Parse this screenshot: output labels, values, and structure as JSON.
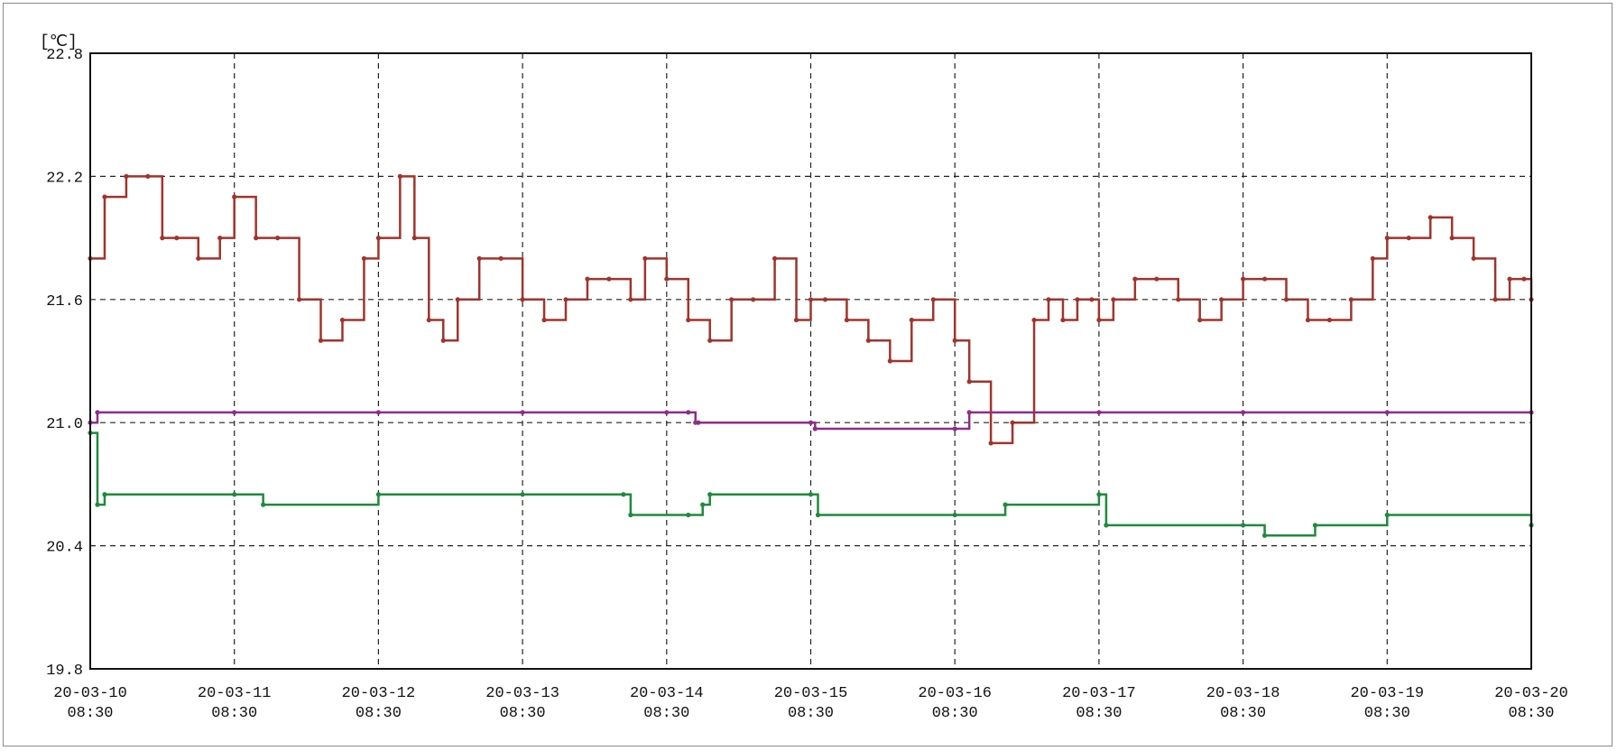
{
  "chart_data": {
    "type": "line",
    "title": "",
    "xlabel": "",
    "ylabel": "[℃]",
    "ylim": [
      19.8,
      22.8
    ],
    "xlim": [
      "20-03-10 08:30",
      "20-03-20 08:30"
    ],
    "yticks": [
      "19.8",
      "20.4",
      "21.0",
      "21.6",
      "22.2",
      "22.8"
    ],
    "xticks": [
      {
        "date": "20-03-10",
        "time": "08:30"
      },
      {
        "date": "20-03-11",
        "time": "08:30"
      },
      {
        "date": "20-03-12",
        "time": "08:30"
      },
      {
        "date": "20-03-13",
        "time": "08:30"
      },
      {
        "date": "20-03-14",
        "time": "08:30"
      },
      {
        "date": "20-03-15",
        "time": "08:30"
      },
      {
        "date": "20-03-16",
        "time": "08:30"
      },
      {
        "date": "20-03-17",
        "time": "08:30"
      },
      {
        "date": "20-03-18",
        "time": "08:30"
      },
      {
        "date": "20-03-19",
        "time": "08:30"
      },
      {
        "date": "20-03-20",
        "time": "08:30"
      }
    ],
    "grid": true,
    "legend": "none",
    "series": [
      {
        "color": "#a0342c",
        "x": [
          0,
          0.1,
          0.25,
          0.4,
          0.5,
          0.6,
          0.75,
          0.9,
          1.0,
          1.15,
          1.3,
          1.45,
          1.6,
          1.75,
          1.9,
          2.0,
          2.15,
          2.25,
          2.35,
          2.45,
          2.55,
          2.7,
          2.85,
          3.0,
          3.15,
          3.3,
          3.45,
          3.6,
          3.75,
          3.85,
          4.0,
          4.15,
          4.3,
          4.45,
          4.6,
          4.75,
          4.9,
          5.0,
          5.1,
          5.25,
          5.4,
          5.55,
          5.7,
          5.85,
          6.0,
          6.1,
          6.25,
          6.4,
          6.55,
          6.65,
          6.75,
          6.85,
          6.95,
          7.0,
          7.1,
          7.25,
          7.4,
          7.55,
          7.7,
          7.85,
          8.0,
          8.15,
          8.3,
          8.45,
          8.6,
          8.75,
          8.9,
          9.0,
          9.15,
          9.3,
          9.45,
          9.6,
          9.75,
          9.85,
          9.95,
          10.0
        ],
        "y": [
          21.8,
          22.1,
          22.2,
          22.2,
          21.9,
          21.9,
          21.8,
          21.9,
          22.1,
          21.9,
          21.9,
          21.6,
          21.4,
          21.5,
          21.8,
          21.9,
          22.2,
          21.9,
          21.5,
          21.4,
          21.6,
          21.8,
          21.8,
          21.6,
          21.5,
          21.6,
          21.7,
          21.7,
          21.6,
          21.8,
          21.7,
          21.5,
          21.4,
          21.6,
          21.6,
          21.8,
          21.5,
          21.6,
          21.6,
          21.5,
          21.4,
          21.3,
          21.5,
          21.6,
          21.4,
          21.2,
          20.9,
          21.0,
          21.5,
          21.6,
          21.5,
          21.6,
          21.6,
          21.5,
          21.6,
          21.7,
          21.7,
          21.6,
          21.5,
          21.6,
          21.7,
          21.7,
          21.6,
          21.5,
          21.5,
          21.6,
          21.8,
          21.9,
          21.9,
          22.0,
          21.9,
          21.8,
          21.6,
          21.7,
          21.7,
          21.6
        ]
      },
      {
        "color": "#8e2d8a",
        "x": [
          0,
          0.05,
          1.0,
          2.0,
          3.0,
          4.0,
          4.15,
          4.2,
          4.22,
          5.0,
          5.03,
          6.0,
          6.1,
          7.0,
          8.0,
          9.0,
          10.0
        ],
        "y": [
          21.0,
          21.05,
          21.05,
          21.05,
          21.05,
          21.05,
          21.05,
          21.0,
          21.0,
          21.0,
          20.97,
          20.97,
          21.05,
          21.05,
          21.05,
          21.05,
          21.05
        ]
      },
      {
        "color": "#1f8a3c",
        "x": [
          0,
          0.05,
          0.1,
          1.0,
          1.2,
          2.0,
          3.0,
          3.7,
          3.75,
          4.15,
          4.25,
          4.3,
          5.0,
          5.05,
          6.0,
          6.35,
          7.0,
          7.05,
          8.0,
          8.15,
          8.5,
          9.0,
          10.0
        ],
        "y": [
          20.95,
          20.6,
          20.65,
          20.65,
          20.6,
          20.65,
          20.65,
          20.65,
          20.55,
          20.55,
          20.6,
          20.65,
          20.65,
          20.55,
          20.55,
          20.6,
          20.65,
          20.5,
          20.5,
          20.45,
          20.5,
          20.55,
          20.5
        ]
      }
    ]
  }
}
